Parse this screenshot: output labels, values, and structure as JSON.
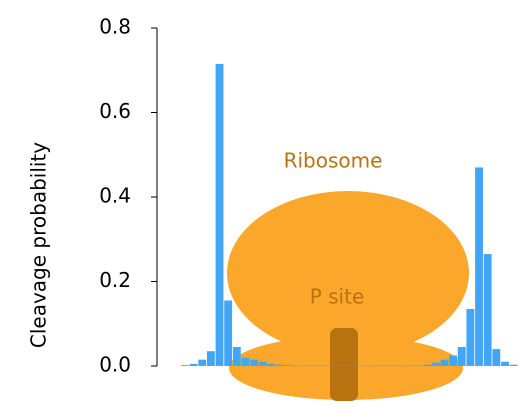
{
  "chart_data": {
    "type": "bar",
    "color": "#42a5f5",
    "y_label": "Cleavage probability",
    "annotations": [
      "Ribosome",
      "P site"
    ],
    "values": [
      0.002,
      0.005,
      0.015,
      0.035,
      0.715,
      0.155,
      0.045,
      0.02,
      0.015,
      0.01,
      0.005,
      0.003,
      0.002,
      0.001,
      0.001,
      0.001,
      0.001,
      0.001,
      0.001,
      0.001,
      0.001,
      0.001,
      0.001,
      0.001,
      0.001,
      0.001,
      0.001,
      0.001,
      0.003,
      0.008,
      0.015,
      0.025,
      0.045,
      0.135,
      0.47,
      0.265,
      0.04,
      0.01,
      0.003
    ],
    "ylim": [
      0,
      0.8
    ],
    "yticks": [
      {
        "value": 0,
        "label": "0.0"
      },
      {
        "value": 0.2,
        "label": "0.2"
      },
      {
        "value": 0.4,
        "label": "0.4"
      },
      {
        "value": 0.6,
        "label": "0.6"
      },
      {
        "value": 0.8,
        "label": "0.8"
      }
    ]
  }
}
